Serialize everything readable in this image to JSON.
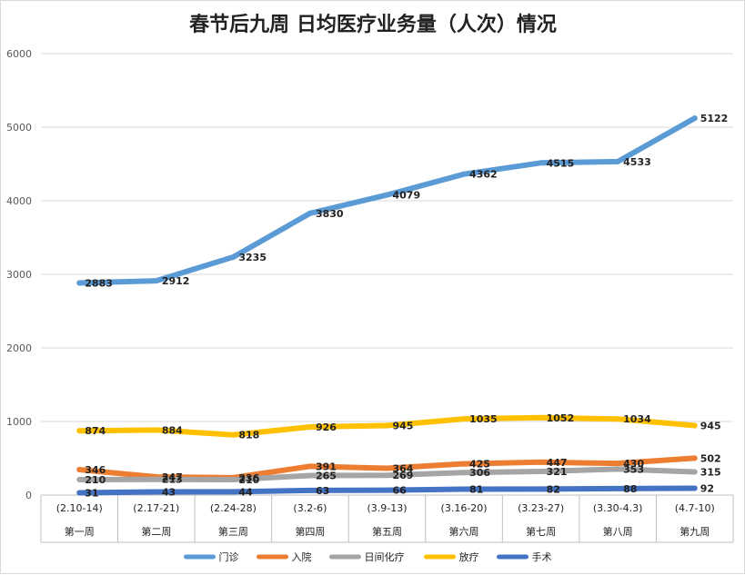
{
  "chart_data": {
    "type": "line",
    "title": "春节后九周 日均医疗业务量（人次）情况",
    "xlabel": "",
    "ylabel": "",
    "ylim": [
      0,
      6000
    ],
    "yticks": [
      0,
      1000,
      2000,
      3000,
      4000,
      5000,
      6000
    ],
    "grid": true,
    "legend_position": "bottom",
    "categories": [
      {
        "range": "(2.10-14)",
        "week": "第一周"
      },
      {
        "range": "(2.17-21)",
        "week": "第二周"
      },
      {
        "range": "(2.24-28)",
        "week": "第三周"
      },
      {
        "range": "(3.2-6)",
        "week": "第四周"
      },
      {
        "range": "(3.9-13)",
        "week": "第五周"
      },
      {
        "range": "(3.16-20)",
        "week": "第六周"
      },
      {
        "range": "(3.23-27)",
        "week": "第七周"
      },
      {
        "range": "(3.30-4.3)",
        "week": "第八周"
      },
      {
        "range": "(4.7-10)",
        "week": "第九周"
      }
    ],
    "series": [
      {
        "name": "门诊",
        "color": "#5b9bd5",
        "values": [
          2883,
          2912,
          3235,
          3830,
          4079,
          4362,
          4515,
          4533,
          5122
        ]
      },
      {
        "name": "入院",
        "color": "#ed7d31",
        "values": [
          346,
          247,
          236,
          391,
          364,
          425,
          447,
          430,
          502
        ]
      },
      {
        "name": "日间化疗",
        "color": "#a5a5a5",
        "values": [
          210,
          213,
          210,
          265,
          269,
          306,
          321,
          353,
          315
        ]
      },
      {
        "name": "放疗",
        "color": "#ffc000",
        "values": [
          874,
          884,
          818,
          926,
          945,
          1035,
          1052,
          1034,
          945
        ]
      },
      {
        "name": "手术",
        "color": "#4472c4",
        "values": [
          31,
          43,
          44,
          63,
          66,
          81,
          82,
          88,
          92
        ]
      }
    ]
  }
}
